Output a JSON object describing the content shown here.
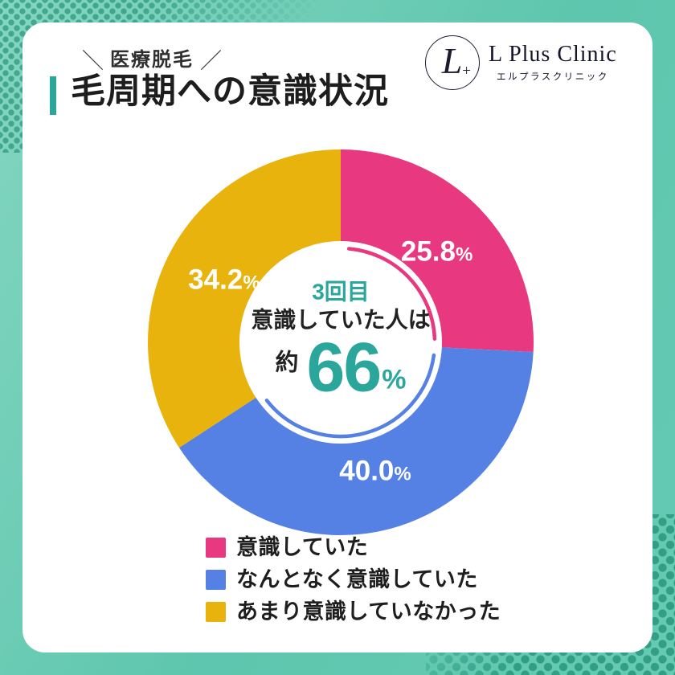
{
  "header": {
    "tagline_decor_left": "＼",
    "tagline": "医療脱毛",
    "tagline_decor_right": "／",
    "title": "毛周期への意識状況"
  },
  "logo": {
    "monogram": "L",
    "monogram_plus": "+",
    "name": "L Plus Clinic",
    "name_kana": "エルプラスクリニック"
  },
  "colors": {
    "accent_teal": "#2aa69b",
    "pink": "#e8387f",
    "blue": "#5681e4",
    "yellow": "#e9b30e",
    "background_mint": "#6fcdb8",
    "card_white": "#ffffff",
    "text_dark": "#1d1d1d"
  },
  "chart_data": {
    "type": "pie",
    "title": "毛周期への意識状況",
    "start_angle_deg": 0,
    "direction": "clockwise",
    "donut_hole": true,
    "legend_position": "bottom-left",
    "slices": [
      {
        "label": "意識していた",
        "value": 25.8,
        "color": "#e8387f",
        "ring": true
      },
      {
        "label": "なんとなく意識していた",
        "value": 40.0,
        "color": "#5681e4",
        "ring": true
      },
      {
        "label": "あまり意識していなかった",
        "value": 34.2,
        "color": "#e9b30e",
        "ring": false
      }
    ],
    "center_annotation": {
      "line1": "3回目",
      "line2": "意識していた人は",
      "prefix": "約",
      "big_value": "66",
      "suffix": "%"
    }
  }
}
